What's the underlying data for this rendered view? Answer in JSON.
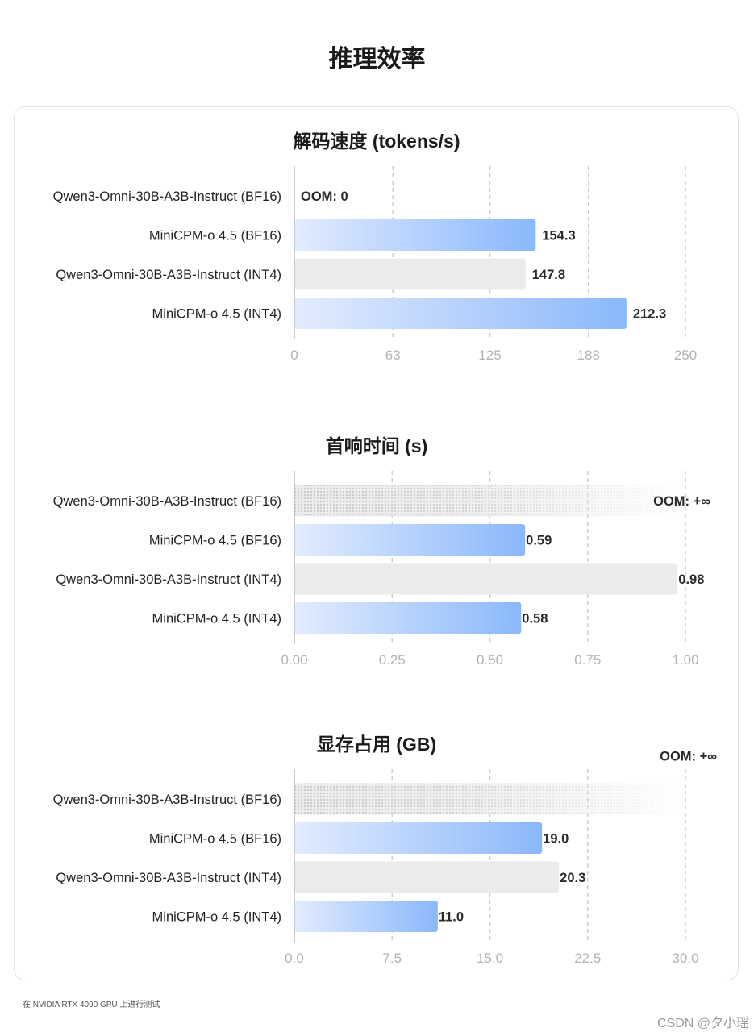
{
  "page": {
    "title": "推理效率",
    "footnote": "在 NVIDIA RTX 4090 GPU 上进行测试",
    "watermark": "CSDN @夕小瑶"
  },
  "colors": {
    "minicpm_bar_start": "#e3ecfe",
    "minicpm_bar_end": "#8ab8fb",
    "qwen_bar": "#ebebeb",
    "oom_bar": "#d9d9d9",
    "grid": "#cccccc",
    "tick_text": "#b3b3b3",
    "label_text": "#222222"
  },
  "chart_data": [
    {
      "type": "bar",
      "orientation": "horizontal",
      "title": "解码速度 (tokens/s)",
      "categories": [
        "Qwen3-Omni-30B-A3B-Instruct (BF16)",
        "MiniCPM-o 4.5 (BF16)",
        "Qwen3-Omni-30B-A3B-Instruct (INT4)",
        "MiniCPM-o 4.5 (INT4)"
      ],
      "values": [
        0,
        154.3,
        147.8,
        212.3
      ],
      "value_labels": [
        "OOM: 0",
        "154.3",
        "147.8",
        "212.3"
      ],
      "styles": [
        "oom-zero",
        "minicpm",
        "qwen",
        "minicpm"
      ],
      "xlim": [
        0,
        250
      ],
      "ticks": [
        0,
        63,
        125,
        188,
        250
      ],
      "tick_labels": [
        "0",
        "63",
        "125",
        "188",
        "250"
      ],
      "grid": true
    },
    {
      "type": "bar",
      "orientation": "horizontal",
      "title": "首响时间 (s)",
      "categories": [
        "Qwen3-Omni-30B-A3B-Instruct (BF16)",
        "MiniCPM-o 4.5 (BF16)",
        "Qwen3-Omni-30B-A3B-Instruct (INT4)",
        "MiniCPM-o 4.5 (INT4)"
      ],
      "values": [
        null,
        0.59,
        0.98,
        0.58
      ],
      "value_labels": [
        "OOM: +∞",
        "0.59",
        "0.98",
        "0.58"
      ],
      "styles": [
        "oom-inf",
        "minicpm",
        "qwen",
        "minicpm"
      ],
      "xlim": [
        0,
        1
      ],
      "ticks": [
        0,
        0.25,
        0.5,
        0.75,
        1
      ],
      "tick_labels": [
        "0.00",
        "0.25",
        "0.50",
        "0.75",
        "1.00"
      ],
      "grid": true
    },
    {
      "type": "bar",
      "orientation": "horizontal",
      "title": "显存占用 (GB)",
      "categories": [
        "Qwen3-Omni-30B-A3B-Instruct (BF16)",
        "MiniCPM-o 4.5 (BF16)",
        "Qwen3-Omni-30B-A3B-Instruct (INT4)",
        "MiniCPM-o 4.5 (INT4)"
      ],
      "values": [
        null,
        19.0,
        20.3,
        11.0
      ],
      "value_labels": [
        "OOM: +∞",
        "19.0",
        "20.3",
        "11.0"
      ],
      "styles": [
        "oom-inf-above",
        "minicpm",
        "qwen",
        "minicpm"
      ],
      "xlim": [
        0,
        30
      ],
      "ticks": [
        0,
        7.5,
        15,
        22.5,
        30
      ],
      "tick_labels": [
        "0.0",
        "7.5",
        "15.0",
        "22.5",
        "30.0"
      ],
      "grid": true
    }
  ]
}
